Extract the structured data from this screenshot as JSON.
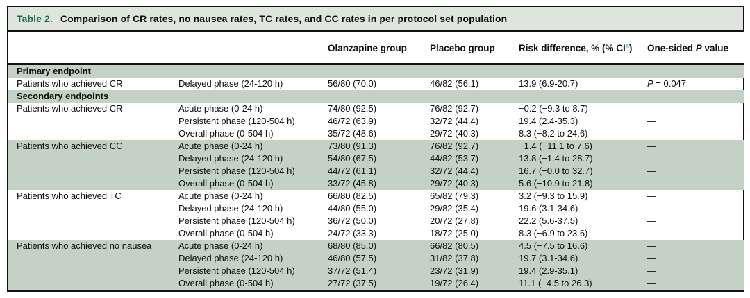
{
  "title": {
    "prefix": "Table 2.",
    "text": "Comparison of CR rates, no nausea rates, TC rates, and CC rates in per protocol set population"
  },
  "header": {
    "olanzapine": "Olanzapine group",
    "placebo": "Placebo group",
    "risk_before_sup": "Risk difference, % (% CI",
    "risk_sup": "a",
    "risk_after_sup": ")",
    "p_before": "One-sided ",
    "p_italic": "P",
    "p_after": " value"
  },
  "rows": [
    {
      "type": "section",
      "label": "Primary endpoint"
    },
    {
      "type": "data",
      "shaded": false,
      "group": "Patients who achieved CR",
      "phase": "Delayed phase (24-120 h)",
      "olanzapine": "56/80 (70.0)",
      "placebo": "46/82 (56.1)",
      "risk": "13.9 (6.9-20.7)",
      "p": "P = 0.047",
      "p_stat": {
        "italic": "P",
        "rest": " = 0.047"
      }
    },
    {
      "type": "section",
      "label": "Secondary endpoints"
    },
    {
      "type": "data",
      "shaded": false,
      "group": "Patients who achieved CR",
      "phase": "Acute phase (0-24 h)",
      "olanzapine": "74/80 (92.5)",
      "placebo": "76/82 (92.7)",
      "risk": "−0.2 (−9.3 to 8.7)",
      "p": "—"
    },
    {
      "type": "data",
      "shaded": false,
      "group": "",
      "phase": "Persistent phase (120-504 h)",
      "olanzapine": "46/72 (63.9)",
      "placebo": "32/72 (44.4)",
      "risk": "19.4 (2.4-35.3)",
      "p": "—"
    },
    {
      "type": "data",
      "shaded": false,
      "group": "",
      "phase": "Overall phase (0-504 h)",
      "olanzapine": "35/72 (48.6)",
      "placebo": "29/72 (40.3)",
      "risk": "8.3 (−8.2 to 24.6)",
      "p": "—"
    },
    {
      "type": "data",
      "shaded": true,
      "group": "Patients who achieved CC",
      "phase": "Acute phase (0-24 h)",
      "olanzapine": "73/80 (91.3)",
      "placebo": "76/82 (92.7)",
      "risk": "−1.4 (−11.1 to 7.6)",
      "p": "—"
    },
    {
      "type": "data",
      "shaded": true,
      "group": "",
      "phase": "Delayed phase (24-120 h)",
      "olanzapine": "54/80 (67.5)",
      "placebo": "44/82 (53.7)",
      "risk": "13.8 (−1.4 to 28.7)",
      "p": "—"
    },
    {
      "type": "data",
      "shaded": true,
      "group": "",
      "phase": "Persistent phase (120-504 h)",
      "olanzapine": "44/72 (61.1)",
      "placebo": "32/72 (44.4)",
      "risk": "16.7 (−0.0 to 32.7)",
      "p": "—"
    },
    {
      "type": "data",
      "shaded": true,
      "group": "",
      "phase": "Overall phase (0-504 h)",
      "olanzapine": "33/72 (45.8)",
      "placebo": "29/72 (40.3)",
      "risk": "5.6 (−10.9 to 21.8)",
      "p": "—"
    },
    {
      "type": "data",
      "shaded": false,
      "group": "Patients who achieved TC",
      "phase": "Acute phase (0-24 h)",
      "olanzapine": "66/80 (82.5)",
      "placebo": "65/82 (79.3)",
      "risk": "3.2 (−9.3 to 15.9)",
      "p": "—"
    },
    {
      "type": "data",
      "shaded": false,
      "group": "",
      "phase": "Delayed phase (24-120 h)",
      "olanzapine": "44/80 (55.0)",
      "placebo": "29/82 (35.4)",
      "risk": "19.6 (3.1-34.6)",
      "p": "—"
    },
    {
      "type": "data",
      "shaded": false,
      "group": "",
      "phase": "Persistent phase (120-504 h)",
      "olanzapine": "36/72 (50.0)",
      "placebo": "20/72 (27.8)",
      "risk": "22.2 (5.6-37.5)",
      "p": "—"
    },
    {
      "type": "data",
      "shaded": false,
      "group": "",
      "phase": "Overall phase (0-504 h)",
      "olanzapine": "24/72 (33.3)",
      "placebo": "18/72 (25.0)",
      "risk": "8.3 (−6.9 to 23.6)",
      "p": "—"
    },
    {
      "type": "data",
      "shaded": true,
      "group": "Patients who achieved no nausea",
      "phase": "Acute phase (0-24 h)",
      "olanzapine": "68/80 (85.0)",
      "placebo": "66/82 (80.5)",
      "risk": "4.5 (−7.5 to 16.6)",
      "p": "—"
    },
    {
      "type": "data",
      "shaded": true,
      "group": "",
      "phase": "Delayed phase (24-120 h)",
      "olanzapine": "46/80 (57.5)",
      "placebo": "31/82 (37.8)",
      "risk": "19.7 (3.1-34.6)",
      "p": "—"
    },
    {
      "type": "data",
      "shaded": true,
      "group": "",
      "phase": "Persistent phase (120-504 h)",
      "olanzapine": "37/72 (51.4)",
      "placebo": "23/72 (31.9)",
      "risk": "19.4 (2.9-35.1)",
      "p": "—"
    },
    {
      "type": "data",
      "shaded": true,
      "group": "",
      "phase": "Overall phase (0-504 h)",
      "olanzapine": "27/72 (37.5)",
      "placebo": "19/72 (26.4)",
      "risk": "11.1 (−4.5 to 26.3)",
      "p": "—"
    }
  ],
  "colors": {
    "band_green": "#c3d2c4",
    "title_bar_bg": "#dfe5de",
    "table_number_green": "#1b6e4a",
    "footnote_marker_blue": "#3fa3c9",
    "border_black": "#111111"
  }
}
